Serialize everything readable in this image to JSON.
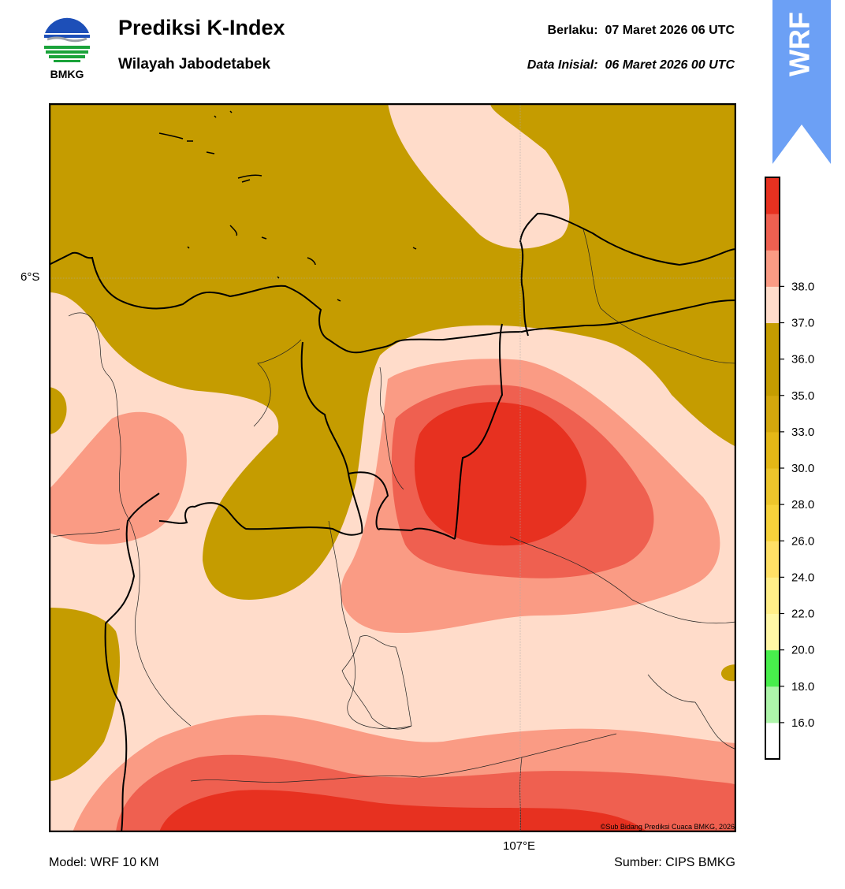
{
  "header": {
    "title": "Prediksi K-Index",
    "region": "Wilayah Jabodetabek",
    "valid_label": "Berlaku:",
    "valid_time": "07 Maret 2026 06 UTC",
    "init_label": "Data Inisial:",
    "init_time": "06 Maret 2026 00 UTC"
  },
  "logo": {
    "text": "BMKG",
    "icon": "bmkg-logo"
  },
  "ribbon": {
    "text": "WRF",
    "color": "#6ca0f5"
  },
  "map": {
    "lat_label": "6°S",
    "lon_label": "107°E",
    "copyright": "©Sub Bidang Prediksi Cuaca BMKG, 2026"
  },
  "colorbar": {
    "ticks": [
      "16.0",
      "18.0",
      "20.0",
      "22.0",
      "24.0",
      "26.0",
      "28.0",
      "30.0",
      "33.0",
      "35.0",
      "36.0",
      "37.0",
      "38.0"
    ],
    "colors": [
      "#ffffff",
      "#aef5aa",
      "#48ee4c",
      "#fff7a6",
      "#ffee88",
      "#ffe066",
      "#f7d23b",
      "#edc52b",
      "#e4b716",
      "#d4a70c",
      "#c59c00",
      "#c59c00",
      "#ffdcca",
      "#fa9b84",
      "#ef6050",
      "#e73120"
    ]
  },
  "footer": {
    "model": "Model: WRF 10 KM",
    "source": "Sumber: CIPS BMKG"
  }
}
